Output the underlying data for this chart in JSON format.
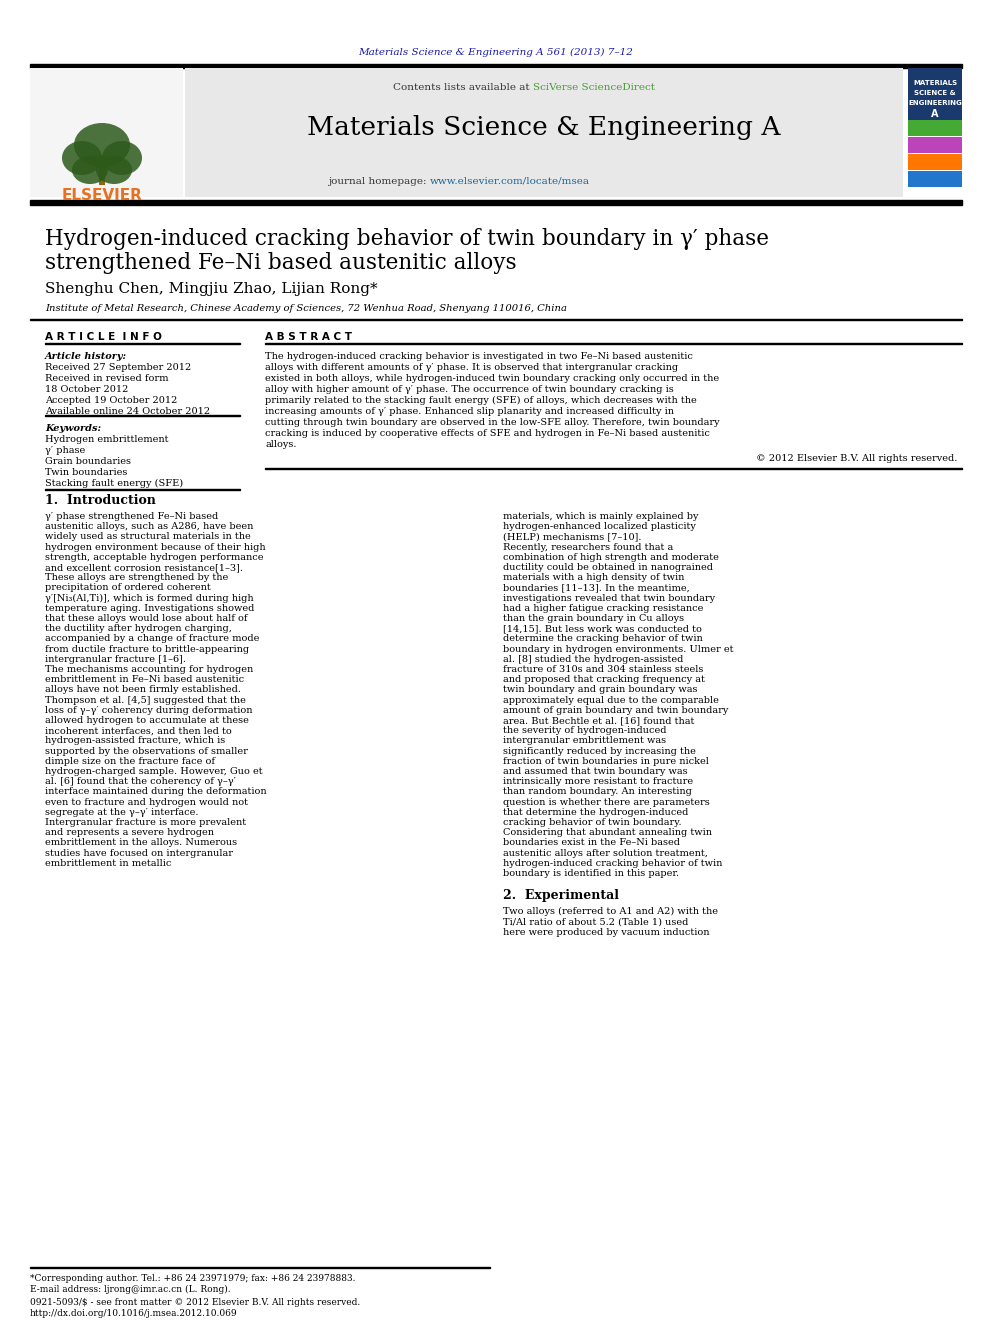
{
  "background_color": "#ffffff",
  "journal_ref": "Materials Science & Engineering A 561 (2013) 7–12",
  "journal_ref_color": "#1a1aaa",
  "header_bg": "#e8e8e8",
  "sciversedirect_color": "#4a9b3a",
  "homepage_color": "#1a6699",
  "title_line1": "Hydrogen-induced cracking behavior of twin boundary in γ′ phase",
  "title_line2": "strengthened Fe–Ni based austenitic alloys",
  "authors": "Shenghu Chen, Mingjiu Zhao, Lijian Rong*",
  "affiliation": "Institute of Metal Research, Chinese Academy of Sciences, 72 Wenhua Road, Shenyang 110016, China",
  "section_article_info": "A R T I C L E  I N F O",
  "section_abstract": "A B S T R A C T",
  "article_history_label": "Article history:",
  "received1": "Received 27 September 2012",
  "received2": "Received in revised form",
  "received2b": "18 October 2012",
  "accepted": "Accepted 19 October 2012",
  "available": "Available online 24 October 2012",
  "keywords_label": "Keywords:",
  "kw1": "Hydrogen embrittlement",
  "kw2": "γ′ phase",
  "kw3": "Grain boundaries",
  "kw4": "Twin boundaries",
  "kw5": "Stacking fault energy (SFE)",
  "abstract_text": "The hydrogen-induced cracking behavior is investigated in two Fe–Ni based austenitic alloys with different amounts of γ′ phase. It is observed that intergranular cracking existed in both alloys, while hydrogen-induced twin boundary cracking only occurred in the alloy with higher amount of γ′ phase. The occurrence of twin boundary cracking is primarily related to the stacking fault energy (SFE) of alloys, which decreases with the increasing amounts of γ′ phase. Enhanced slip planarity and increased difficulty in cutting through twin boundary are observed in the low-SFE alloy. Therefore, twin boundary cracking is induced by cooperative effects of SFE and hydrogen in Fe–Ni based austenitic alloys.",
  "copyright": "© 2012 Elsevier B.V. All rights reserved.",
  "intro_heading": "1.  Introduction",
  "intro_col1": "γ′ phase strengthened Fe–Ni based austenitic alloys, such as A286, have been widely used as structural materials in the hydrogen environment because of their high strength, acceptable hydrogen performance and excellent corrosion resistance[1–3]. These alloys are strengthened by the precipitation of ordered coherent γ′[Ni₃(Al,Ti)], which is formed during high temperature aging. Investigations showed that these alloys would lose about half of the ductility after hydrogen charging, accompanied by a change of fracture mode from ductile fracture to brittle-appearing intergranular fracture [1–6].\n    The mechanisms accounting for hydrogen embrittlement in Fe–Ni based austenitic alloys have not been firmly established. Thompson et al. [4,5] suggested that the loss of γ–γ′ coherency during deformation allowed hydrogen to accumulate at these incoherent interfaces, and then led to hydrogen-assisted fracture, which is supported by the observations of smaller dimple size on the fracture face of hydrogen-charged sample. However, Guo et al. [6] found that the coherency of γ–γ′ interface maintained during the deformation even to fracture and hydrogen would not segregate at the γ–γ′ interface. Intergranular fracture is more prevalent and represents a severe hydrogen embrittlement in the alloys. Numerous studies have focused on intergranular embrittlement in metallic",
  "intro_col2": "materials, which is mainly explained by hydrogen-enhanced localized plasticity (HELP) mechanisms [7–10].\n    Recently, researchers found that a combination of high strength and moderate ductility could be obtained in nanograined materials with a high density of twin boundaries [11–13]. In the meantime, investigations revealed that twin boundary had a higher fatigue cracking resistance than the grain boundary in Cu alloys [14,15]. But less work was conducted to determine the cracking behavior of twin boundary in hydrogen environments. Ulmer et al. [8] studied the hydrogen-assisted fracture of 310s and 304 stainless steels and proposed that cracking frequency at twin boundary and grain boundary was approximately equal due to the comparable amount of grain boundary and twin boundary area. But Bechtle et al. [16] found that the severity of hydrogen-induced intergranular embrittlement was significantly reduced by increasing the fraction of twin boundaries in pure nickel and assumed that twin boundary was intrinsically more resistant to fracture than random boundary. An interesting question is whether there are parameters that determine the hydrogen-induced cracking behavior of twin boundary. Considering that abundant annealing twin boundaries exist in the Fe–Ni based austenitic alloys after solution treatment, hydrogen-induced cracking behavior of twin boundary is identified in this paper.",
  "exp_heading": "2.  Experimental",
  "exp_col2_text": "    Two alloys (referred to A1 and A2) with the Ti/Al ratio of about 5.2 (Table 1) used here were produced by vacuum induction",
  "footer_note": "*Corresponding author. Tel.: +86 24 23971979; fax: +86 24 23978883.",
  "footer_email": "E-mail address: ljrong@imr.ac.cn (L. Rong).",
  "footer_issn": "0921-5093/$ - see front matter © 2012 Elsevier B.V. All rights reserved.",
  "footer_doi": "http://dx.doi.org/10.1016/j.msea.2012.10.069",
  "cover_colors": [
    "#2255aa",
    "#66aa33",
    "#aa33aa",
    "#ff8800",
    "#3388cc"
  ]
}
